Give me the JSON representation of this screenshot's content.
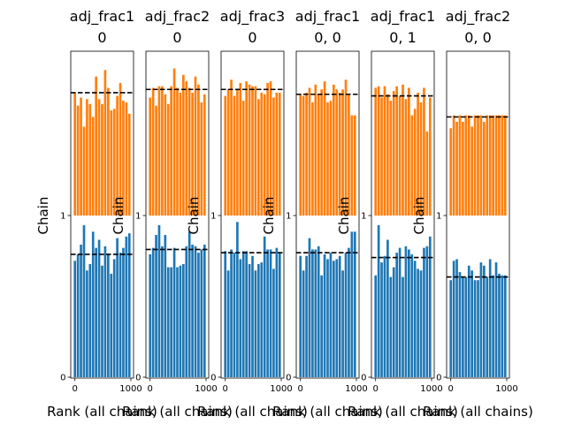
{
  "chart_data": [
    {
      "type": "bar",
      "title_lines": [
        "adj_frac1",
        "0"
      ],
      "xlabel": "Rank (all chains)",
      "ylabel": "Chain",
      "xticklabels": [
        "0",
        "1000"
      ],
      "yticklabels": [
        "0",
        "1"
      ],
      "bar_colors": [
        "#1f77b4",
        "#ff7f0e"
      ],
      "mean_line_style": "dashed black",
      "series": [
        {
          "values": [
            0.72,
            0.76,
            0.82,
            0.94,
            0.66,
            0.7,
            0.9,
            0.8,
            0.85,
            0.69,
            0.81,
            0.76,
            0.64,
            0.73,
            0.86,
            0.77,
            0.8,
            0.87,
            0.89
          ]
        },
        {
          "values": [
            0.76,
            0.68,
            0.73,
            0.55,
            0.72,
            0.69,
            0.61,
            0.86,
            0.72,
            0.69,
            0.9,
            0.79,
            0.65,
            0.66,
            0.74,
            0.82,
            0.71,
            0.7,
            0.63
          ]
        }
      ],
      "mean_levels": [
        0.76,
        0.76
      ]
    },
    {
      "type": "bar",
      "title_lines": [
        "adj_frac2",
        "0"
      ],
      "xlabel": "Rank (all chains)",
      "ylabel": "Chain",
      "xticklabels": [
        "0",
        "1000"
      ],
      "yticklabels": [
        "0",
        "1"
      ],
      "bar_colors": [
        "#1f77b4",
        "#ff7f0e"
      ],
      "mean_line_style": "dashed black",
      "series": [
        {
          "values": [
            0.76,
            0.8,
            0.88,
            0.94,
            0.81,
            0.88,
            0.68,
            0.68,
            0.8,
            0.68,
            0.69,
            0.7,
            0.81,
            0.9,
            0.82,
            0.81,
            0.77,
            0.79,
            0.82
          ]
        },
        {
          "values": [
            0.73,
            0.79,
            0.68,
            0.8,
            0.8,
            0.75,
            0.69,
            0.8,
            0.91,
            0.79,
            0.76,
            0.87,
            0.83,
            0.79,
            0.76,
            0.86,
            0.81,
            0.7,
            0.75
          ]
        }
      ],
      "mean_levels": [
        0.79,
        0.78
      ]
    },
    {
      "type": "bar",
      "title_lines": [
        "adj_frac3",
        "0"
      ],
      "xlabel": "Rank (all chains)",
      "ylabel": "Chain",
      "xticklabels": [
        "0",
        "1000"
      ],
      "yticklabels": [
        "0",
        "1"
      ],
      "bar_colors": [
        "#1f77b4",
        "#ff7f0e"
      ],
      "mean_line_style": "dashed black",
      "series": [
        {
          "values": [
            0.78,
            0.66,
            0.79,
            0.77,
            0.96,
            0.73,
            0.78,
            0.78,
            0.7,
            0.75,
            0.66,
            0.7,
            0.71,
            0.87,
            0.79,
            0.79,
            0.67,
            0.8,
            0.77
          ]
        },
        {
          "values": [
            0.74,
            0.78,
            0.84,
            0.74,
            0.78,
            0.82,
            0.71,
            0.83,
            0.81,
            0.8,
            0.8,
            0.72,
            0.76,
            0.75,
            0.82,
            0.83,
            0.73,
            0.76,
            0.76
          ]
        }
      ],
      "mean_levels": [
        0.77,
        0.78
      ]
    },
    {
      "type": "bar",
      "title_lines": [
        "adj_frac1",
        "0, 0"
      ],
      "xlabel": "Rank (all chains)",
      "ylabel": "Chain",
      "xticklabels": [
        "0",
        "1000"
      ],
      "yticklabels": [
        "0",
        "1"
      ],
      "bar_colors": [
        "#1f77b4",
        "#ff7f0e"
      ],
      "mean_line_style": "dashed black",
      "series": [
        {
          "values": [
            0.75,
            0.66,
            0.75,
            0.86,
            0.79,
            0.79,
            0.81,
            0.63,
            0.76,
            0.73,
            0.77,
            0.72,
            0.73,
            0.75,
            0.66,
            0.77,
            0.8,
            0.9,
            0.9
          ]
        },
        {
          "values": [
            0.75,
            0.74,
            0.76,
            0.79,
            0.7,
            0.81,
            0.75,
            0.78,
            0.83,
            0.7,
            0.71,
            0.81,
            0.78,
            0.76,
            0.78,
            0.84,
            0.75,
            0.62,
            0.62
          ]
        }
      ],
      "mean_levels": [
        0.77,
        0.75
      ]
    },
    {
      "type": "bar",
      "title_lines": [
        "adj_frac1",
        "0, 1"
      ],
      "xlabel": "Rank (all chains)",
      "ylabel": "Chain",
      "xticklabels": [
        "0",
        "1000"
      ],
      "yticklabels": [
        "0",
        "1"
      ],
      "bar_colors": [
        "#1f77b4",
        "#ff7f0e"
      ],
      "mean_line_style": "dashed black",
      "series": [
        {
          "values": [
            0.63,
            0.94,
            0.71,
            0.75,
            0.85,
            0.62,
            0.68,
            0.77,
            0.8,
            0.62,
            0.81,
            0.79,
            0.76,
            0.72,
            0.67,
            0.66,
            0.8,
            0.81,
            0.87
          ]
        },
        {
          "values": [
            0.79,
            0.8,
            0.73,
            0.8,
            0.75,
            0.71,
            0.77,
            0.8,
            0.74,
            0.81,
            0.72,
            0.79,
            0.62,
            0.66,
            0.76,
            0.7,
            0.79,
            0.52,
            0.73
          ]
        }
      ],
      "mean_levels": [
        0.74,
        0.74
      ]
    },
    {
      "type": "bar",
      "title_lines": [
        "adj_frac2",
        "0, 0"
      ],
      "xlabel": "Rank (all chains)",
      "ylabel": "Chain",
      "xticklabels": [
        "0",
        "1000"
      ],
      "yticklabels": [
        "0",
        "1"
      ],
      "bar_colors": [
        "#1f77b4",
        "#ff7f0e"
      ],
      "mean_line_style": "dashed black",
      "series": [
        {
          "values": [
            0.6,
            0.72,
            0.73,
            0.65,
            0.62,
            0.62,
            0.69,
            0.66,
            0.6,
            0.6,
            0.71,
            0.69,
            0.62,
            0.73,
            0.63,
            0.71,
            0.64,
            0.63,
            0.63
          ]
        },
        {
          "values": [
            0.54,
            0.62,
            0.58,
            0.62,
            0.58,
            0.62,
            0.62,
            0.55,
            0.62,
            0.62,
            0.62,
            0.58,
            0.62,
            0.62,
            0.62,
            0.62,
            0.62,
            0.62,
            0.62
          ]
        }
      ],
      "mean_levels": [
        0.62,
        0.61
      ]
    }
  ]
}
